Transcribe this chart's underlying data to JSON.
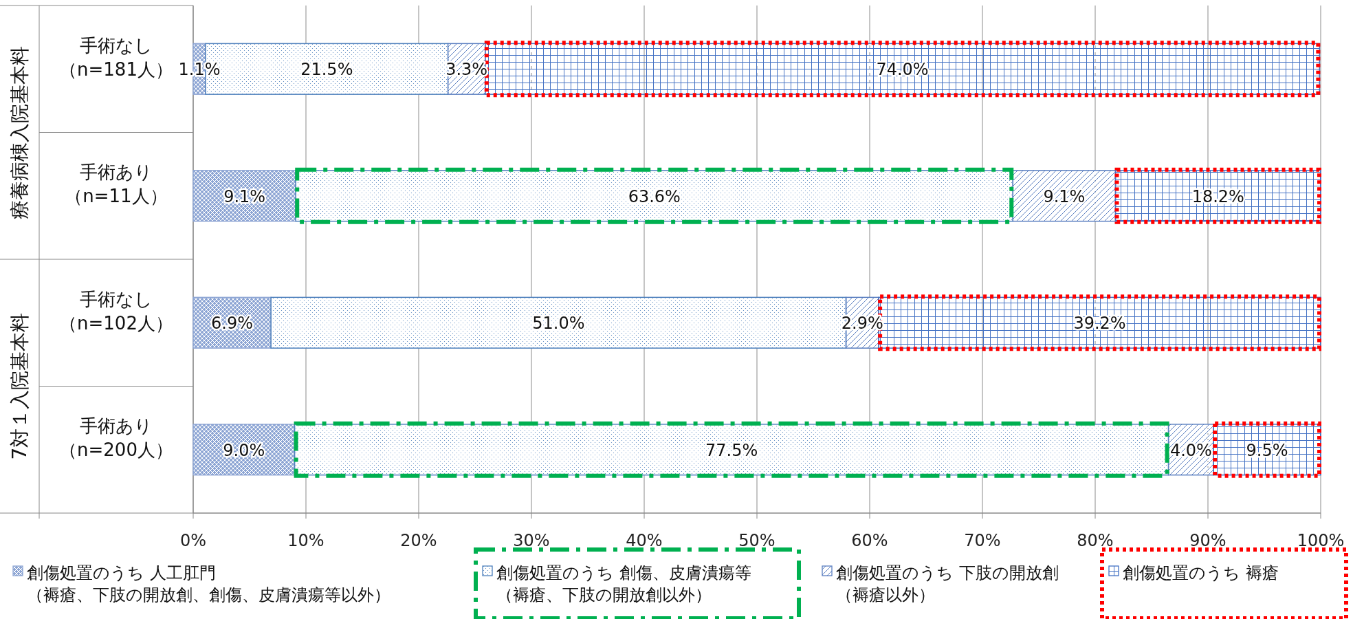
{
  "chart_data": {
    "type": "bar",
    "orientation": "horizontal",
    "stacked": true,
    "categories": [
      "手術なし（n=181人）",
      "手術あり（n=11人）",
      "手術なし（n=102人）",
      "手術あり（n=200人）"
    ],
    "series": [
      {
        "name": "創傷処置のうち 人工肛門（褥瘡、下肢の開放創、創傷、皮膚潰瘍等以外）",
        "color": "#8ea6d4",
        "values": [
          1.1,
          9.1,
          6.9,
          9.0
        ],
        "value_labels": [
          "1.1%",
          "9.1%",
          "6.9%",
          "9.0%"
        ]
      },
      {
        "name": "創傷処置のうち 創傷、皮膚潰瘍等（褥瘡、下肢の開放創以外）",
        "color": "#4f81bd",
        "values": [
          21.5,
          63.6,
          51.0,
          77.5
        ],
        "value_labels": [
          "21.5%",
          "63.6%",
          "51.0%",
          "77.5%"
        ]
      },
      {
        "name": "創傷処置のうち 下肢の開放創（褥瘡以外）",
        "color": "#5b7fc0",
        "values": [
          3.3,
          9.1,
          2.9,
          4.0
        ],
        "value_labels": [
          "3.3%",
          "9.1%",
          "2.9%",
          "4.0%"
        ]
      },
      {
        "name": "創傷処置のうち 褥瘡",
        "color": "#4472c4",
        "values": [
          74.0,
          18.2,
          39.2,
          9.5
        ],
        "value_labels": [
          "74.0%",
          "18.2%",
          "39.2%",
          "9.5%"
        ]
      }
    ],
    "annotations": [
      "療養病棟入院基本料",
      "7対１入院基本料"
    ],
    "xlim": [
      0,
      100
    ],
    "xticks": [
      {
        "value": 0,
        "label": "0%"
      },
      {
        "value": 10,
        "label": "10%"
      },
      {
        "value": 20,
        "label": "20%"
      },
      {
        "value": 30,
        "label": "30%"
      },
      {
        "value": 40,
        "label": "40%"
      },
      {
        "value": 50,
        "label": "50%"
      },
      {
        "value": 60,
        "label": "60%"
      },
      {
        "value": 70,
        "label": "70%"
      },
      {
        "value": 80,
        "label": "80%"
      },
      {
        "value": 90,
        "label": "90%"
      },
      {
        "value": 100,
        "label": "100%"
      }
    ],
    "grid": "x",
    "legend": "bottom"
  }
}
